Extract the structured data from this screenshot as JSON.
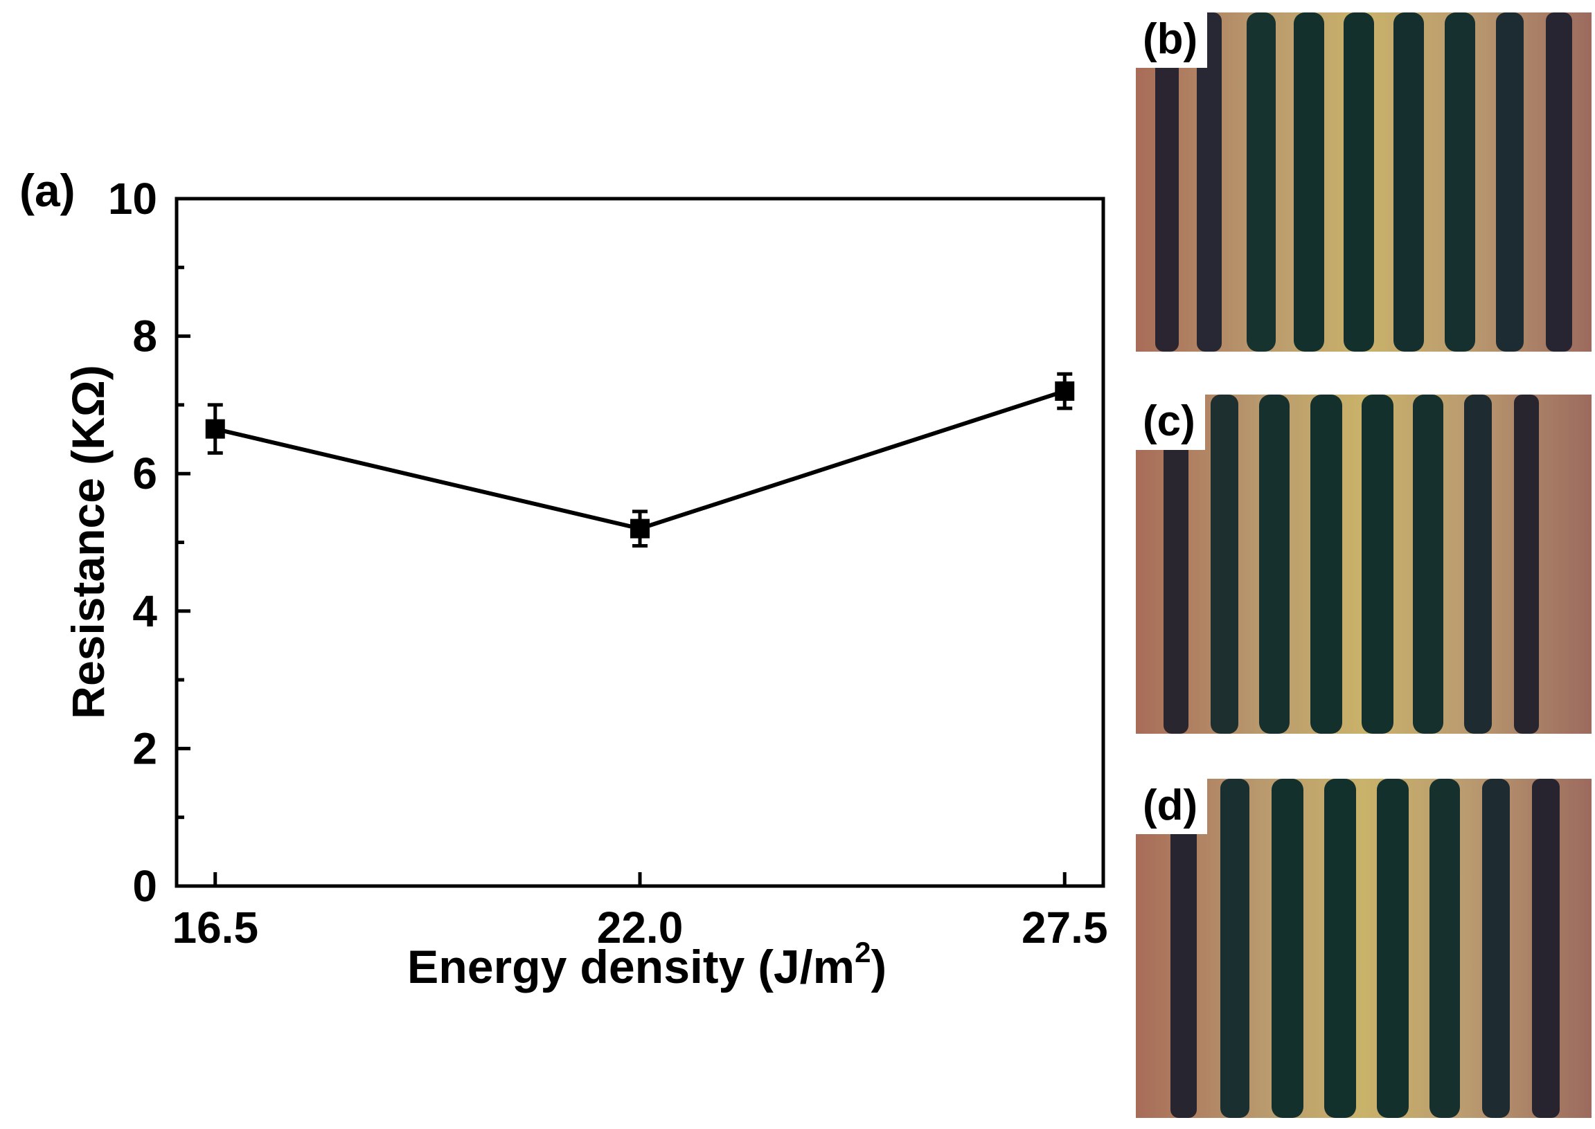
{
  "panel_a": {
    "label": "(a)"
  },
  "chart_data": {
    "type": "line",
    "xlabel_main": "Energy density (J/m",
    "xlabel_sup": "2",
    "xlabel_close": ")",
    "ylabel": "Resistance (KΩ)",
    "categories": [
      "16.5",
      "22.0",
      "27.5"
    ],
    "x": [
      16.5,
      22.0,
      27.5
    ],
    "series": [
      {
        "values": [
          6.65,
          5.2,
          7.2
        ],
        "error": [
          0.35,
          0.25,
          0.25
        ]
      }
    ],
    "xlim": [
      16.0,
      28.0
    ],
    "ylim": [
      0,
      10
    ],
    "yticks": [
      0,
      2,
      4,
      6,
      8,
      10
    ],
    "grid": false,
    "marker": "square",
    "color": "#000000"
  },
  "photos": [
    {
      "label": "(b)"
    },
    {
      "label": "(c)"
    },
    {
      "label": "(d)"
    }
  ],
  "colors": {
    "stripe_dark": "#14302c",
    "stripe_gold": "#c2a460",
    "stripe_copper": "#9c6a56",
    "stripe_purple": "#251f2e"
  }
}
